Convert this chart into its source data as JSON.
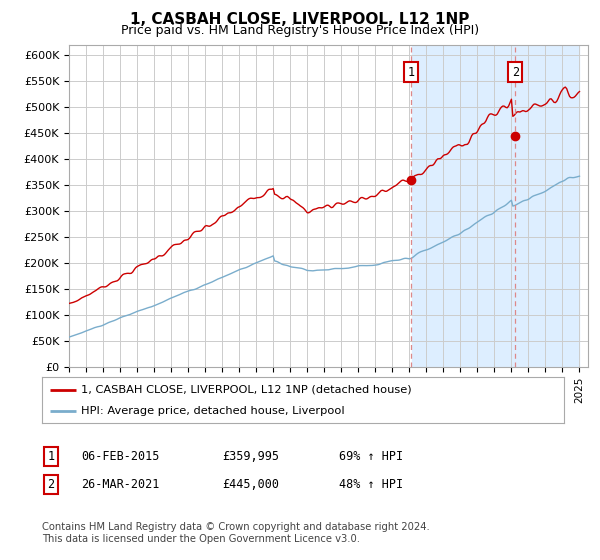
{
  "title": "1, CASBAH CLOSE, LIVERPOOL, L12 1NP",
  "subtitle": "Price paid vs. HM Land Registry's House Price Index (HPI)",
  "ylabel_ticks": [
    "£0",
    "£50K",
    "£100K",
    "£150K",
    "£200K",
    "£250K",
    "£300K",
    "£350K",
    "£400K",
    "£450K",
    "£500K",
    "£550K",
    "£600K"
  ],
  "ylim": [
    0,
    620000
  ],
  "ytick_vals": [
    0,
    50000,
    100000,
    150000,
    200000,
    250000,
    300000,
    350000,
    400000,
    450000,
    500000,
    550000,
    600000
  ],
  "x_start_year": 1995,
  "x_end_year": 2025,
  "sale1_date": 2015.09,
  "sale1_price": 359995,
  "sale1_label": "1",
  "sale2_date": 2021.23,
  "sale2_price": 445000,
  "sale2_label": "2",
  "red_color": "#cc0000",
  "blue_color": "#7aadcc",
  "vline_color": "#dd8888",
  "shade_color": "#ddeeff",
  "legend_label_red": "1, CASBAH CLOSE, LIVERPOOL, L12 1NP (detached house)",
  "legend_label_blue": "HPI: Average price, detached house, Liverpool",
  "annotation1_text": "06-FEB-2015",
  "annotation1_price": "£359,995",
  "annotation1_hpi": "69% ↑ HPI",
  "annotation2_text": "26-MAR-2021",
  "annotation2_price": "£445,000",
  "annotation2_hpi": "48% ↑ HPI",
  "footer": "Contains HM Land Registry data © Crown copyright and database right 2024.\nThis data is licensed under the Open Government Licence v3.0.",
  "background_color": "#ffffff",
  "grid_color": "#cccccc"
}
